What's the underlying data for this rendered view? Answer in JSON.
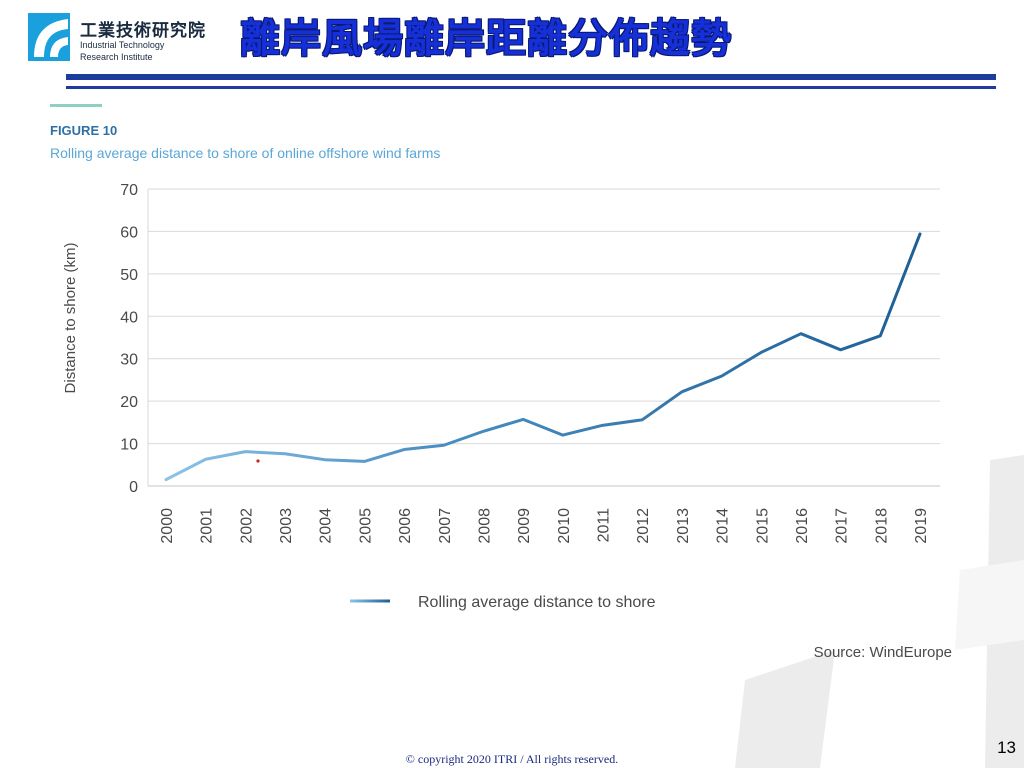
{
  "header": {
    "logo_cn": "工業技術研究院",
    "logo_en_line1": "Industrial Technology",
    "logo_en_line2": "Research Institute",
    "title": "離岸風場離岸距離分佈趨勢"
  },
  "figure": {
    "label": "FIGURE 10",
    "caption": "Rolling average distance to shore of online offshore wind farms",
    "source": "Source: WindEurope"
  },
  "chart_data": {
    "type": "line",
    "title": "Rolling average distance to shore of online offshore wind farms",
    "xlabel": "",
    "ylabel": "Distance to shore (km)",
    "ylim": [
      0,
      70
    ],
    "yticks": [
      0,
      10,
      20,
      30,
      40,
      50,
      60,
      70
    ],
    "grid": true,
    "legend_position": "bottom",
    "categories": [
      "2000",
      "2001",
      "2002",
      "2003",
      "2004",
      "2005",
      "2006",
      "2007",
      "2008",
      "2009",
      "2010",
      "2011",
      "2012",
      "2013",
      "2014",
      "2015",
      "2016",
      "2017",
      "2018",
      "2019"
    ],
    "series": [
      {
        "name": "Rolling average distance to shore",
        "values": [
          1.5,
          6.3,
          8.1,
          7.6,
          6.2,
          5.8,
          8.6,
          9.6,
          12.9,
          15.7,
          12.0,
          14.3,
          15.6,
          22.2,
          25.9,
          31.5,
          35.9,
          32.1,
          35.4,
          59.4
        ]
      }
    ],
    "colors": {
      "line_start": "#8ec3e6",
      "line_end": "#1e5f96",
      "grid": "#d9d9d9",
      "axis_text": "#4a4a4a",
      "figure_label": "#2e6fa6",
      "caption": "#5ba6d6"
    }
  },
  "footer": {
    "copyright": "© copyright 2020 ITRI / All rights reserved.",
    "page_number": "13"
  }
}
